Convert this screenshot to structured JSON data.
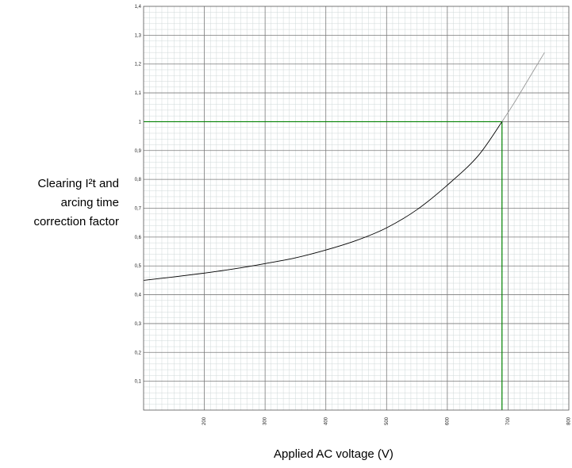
{
  "chart_data": {
    "type": "line",
    "ylabel_lines": [
      "Clearing I²t and",
      "arcing time",
      "correction factor"
    ],
    "xlabel": "Applied AC voltage (V)",
    "xlim": [
      100,
      800
    ],
    "ylim": [
      0,
      1.4
    ],
    "x_ticks": [
      {
        "value": 200,
        "label": "200"
      },
      {
        "value": 300,
        "label": "300"
      },
      {
        "value": 400,
        "label": "400"
      },
      {
        "value": 500,
        "label": "500"
      },
      {
        "value": 600,
        "label": "600"
      },
      {
        "value": 700,
        "label": "700"
      },
      {
        "value": 800,
        "label": "800"
      }
    ],
    "y_ticks": [
      {
        "value": 0.1,
        "label": "0,1"
      },
      {
        "value": 0.2,
        "label": "0,2"
      },
      {
        "value": 0.3,
        "label": "0,3"
      },
      {
        "value": 0.4,
        "label": "0,4"
      },
      {
        "value": 0.5,
        "label": "0,5"
      },
      {
        "value": 0.6,
        "label": "0,6"
      },
      {
        "value": 0.7,
        "label": "0,7"
      },
      {
        "value": 0.8,
        "label": "0,8"
      },
      {
        "value": 0.9,
        "label": "0,9"
      },
      {
        "value": 1.0,
        "label": "1"
      },
      {
        "value": 1.1,
        "label": "1,1"
      },
      {
        "value": 1.2,
        "label": "1,2"
      },
      {
        "value": 1.3,
        "label": "1,3"
      },
      {
        "value": 1.4,
        "label": "1,4"
      }
    ],
    "grid": true,
    "series": [
      {
        "x": [
          100,
          150,
          200,
          250,
          300,
          350,
          400,
          450,
          500,
          550,
          600,
          650,
          690
        ],
        "y": [
          0.45,
          0.462,
          0.475,
          0.49,
          0.508,
          0.528,
          0.555,
          0.588,
          0.632,
          0.695,
          0.78,
          0.88,
          1.0
        ],
        "color": "#000000"
      },
      {
        "x": [
          690,
          710,
          730,
          760
        ],
        "y": [
          1.0,
          1.065,
          1.135,
          1.24
        ],
        "color": "#999999"
      }
    ],
    "reference_lines": [
      {
        "orientation": "horizontal",
        "value": 1.0,
        "color": "#008000"
      },
      {
        "orientation": "vertical",
        "value": 690,
        "color": "#008000"
      }
    ]
  }
}
